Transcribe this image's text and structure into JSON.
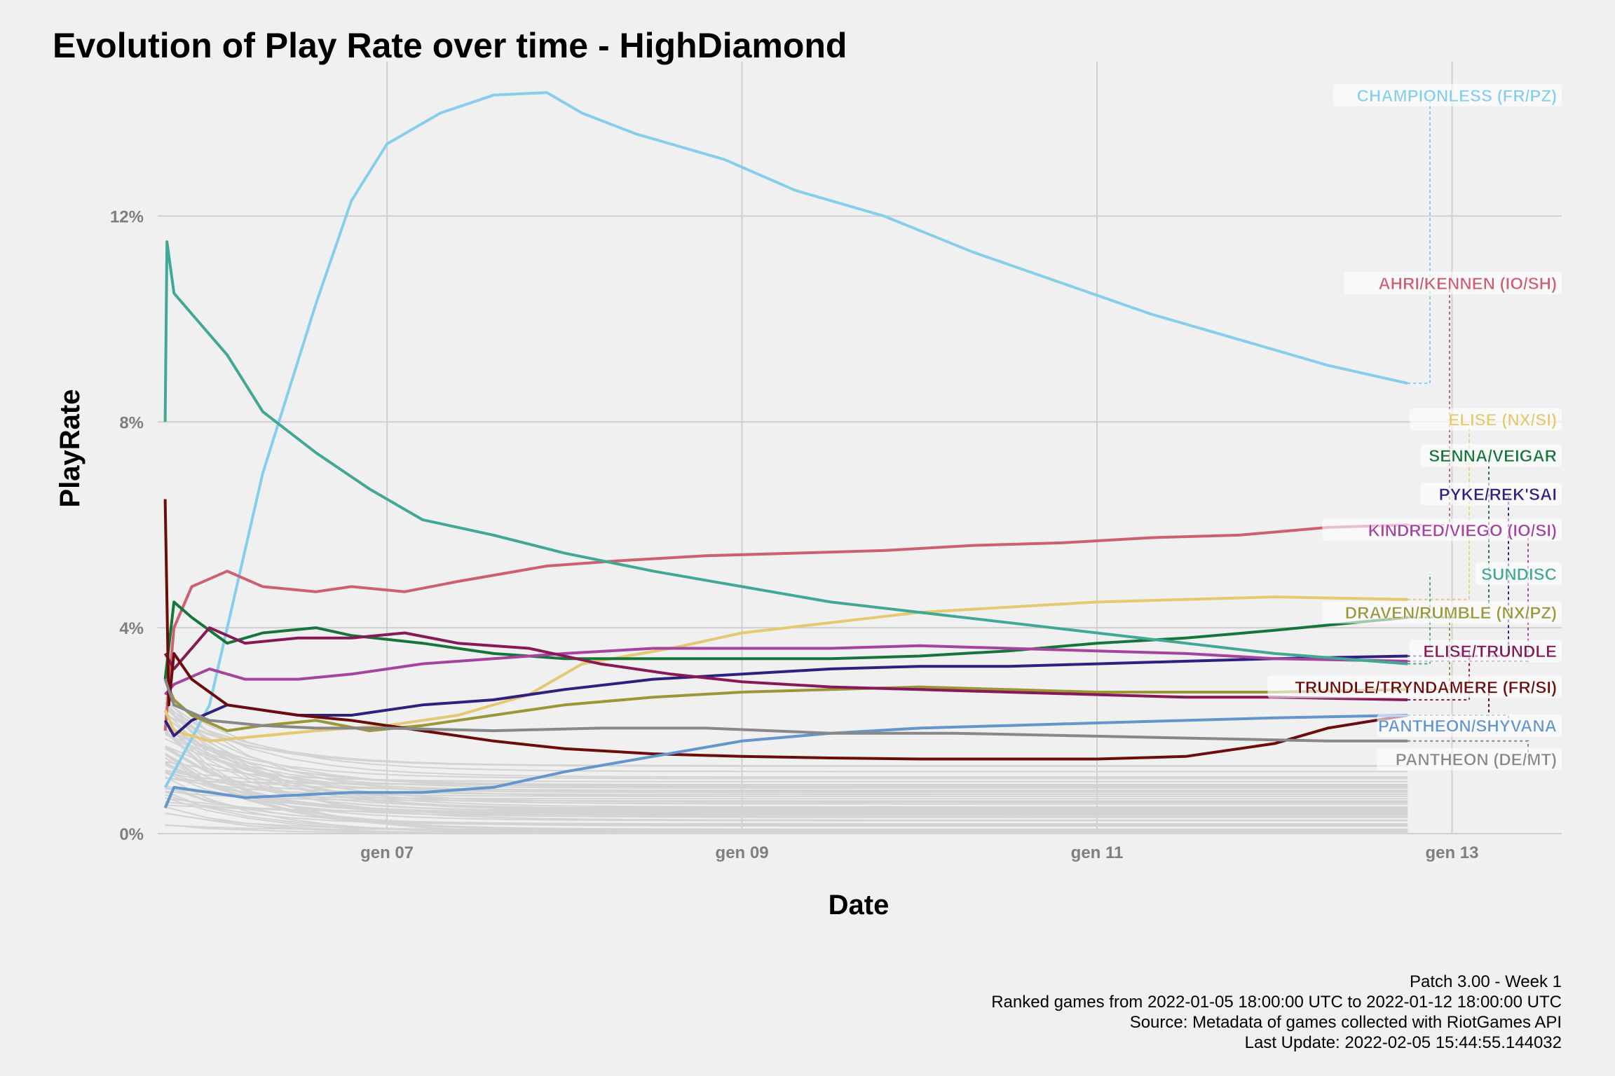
{
  "chart_data": {
    "type": "line",
    "title": "Evolution of Play Rate over time - HighDiamond",
    "xlabel": "Date",
    "ylabel": "PlayRate",
    "x_ticks": [
      "gen 07",
      "gen 09",
      "gen 11",
      "gen 13"
    ],
    "x_tick_dates": [
      "2022-01-07",
      "2022-01-09",
      "2022-01-11",
      "2022-01-13"
    ],
    "xlim": [
      "2022-01-05 17:00",
      "2022-01-13 14:50"
    ],
    "y_ticks": [
      "0%",
      "4%",
      "8%",
      "12%"
    ],
    "y_tick_values": [
      0,
      4,
      8,
      12
    ],
    "ylim": [
      0,
      15
    ],
    "grid": true,
    "legend": "none (direct labels at right)",
    "caption": [
      "Patch 3.00 - Week 1",
      "Ranked games from 2022-01-05 18:00:00 UTC to 2022-01-12 18:00:00 UTC",
      "Source: Metadata of games collected with RiotGames API",
      "Last Update: 2022-02-05 15:44:55.144032"
    ],
    "background_series_color": "#d3d3d3",
    "series": [
      {
        "name": "CHAMPIONLESS (FR/PZ)",
        "color": "#87ceeb",
        "label_y": 14.35,
        "x": [
          "2022-01-05 18:00",
          "2022-01-05 19:12",
          "2022-01-06 00:00",
          "2022-01-06 07:12",
          "2022-01-06 14:24",
          "2022-01-06 19:12",
          "2022-01-07 00:00",
          "2022-01-07 07:12",
          "2022-01-07 14:24",
          "2022-01-07 21:36",
          "2022-01-08 02:24",
          "2022-01-08 09:36",
          "2022-01-08 21:36",
          "2022-01-09 07:12",
          "2022-01-09 19:12",
          "2022-01-10 07:12",
          "2022-01-10 19:12",
          "2022-01-11 07:12",
          "2022-01-11 19:12",
          "2022-01-12 07:12",
          "2022-01-12 18:00"
        ],
        "y": [
          0.9,
          1.2,
          2.5,
          7.0,
          10.3,
          12.3,
          13.4,
          14.0,
          14.35,
          14.4,
          14.0,
          13.6,
          13.1,
          12.5,
          12.0,
          11.3,
          10.7,
          10.1,
          9.6,
          9.1,
          8.75
        ]
      },
      {
        "name": "AHRI/KENNEN (IO/SH)",
        "color": "#cd6070",
        "label_y": 10.7,
        "x": [
          "2022-01-05 18:00",
          "2022-01-05 19:12",
          "2022-01-05 21:36",
          "2022-01-06 02:24",
          "2022-01-06 07:12",
          "2022-01-06 14:24",
          "2022-01-06 19:12",
          "2022-01-07 02:24",
          "2022-01-07 09:36",
          "2022-01-07 21:36",
          "2022-01-08 07:12",
          "2022-01-08 19:12",
          "2022-01-09 07:12",
          "2022-01-09 19:12",
          "2022-01-10 07:12",
          "2022-01-10 19:12",
          "2022-01-11 07:12",
          "2022-01-11 19:12",
          "2022-01-12 07:12",
          "2022-01-12 18:00"
        ],
        "y": [
          2.0,
          4.0,
          4.8,
          5.1,
          4.8,
          4.7,
          4.8,
          4.7,
          4.9,
          5.2,
          5.3,
          5.4,
          5.45,
          5.5,
          5.6,
          5.65,
          5.75,
          5.8,
          5.95,
          6.0
        ]
      },
      {
        "name": "ELISE (NX/SI)",
        "color": "#e4c872",
        "label_y": 8.05,
        "x": [
          "2022-01-05 18:00",
          "2022-01-05 19:12",
          "2022-01-06 00:00",
          "2022-01-06 07:12",
          "2022-01-06 14:24",
          "2022-01-07 00:00",
          "2022-01-07 09:36",
          "2022-01-07 19:12",
          "2022-01-08 02:24",
          "2022-01-08 14:24",
          "2022-01-09 00:00",
          "2022-01-09 12:00",
          "2022-01-10 00:00",
          "2022-01-10 12:00",
          "2022-01-11 00:00",
          "2022-01-11 12:00",
          "2022-01-12 00:00",
          "2022-01-12 18:00"
        ],
        "y": [
          2.4,
          2.0,
          1.8,
          1.9,
          2.0,
          2.1,
          2.3,
          2.7,
          3.3,
          3.6,
          3.9,
          4.1,
          4.3,
          4.4,
          4.5,
          4.55,
          4.6,
          4.55
        ]
      },
      {
        "name": "SENNA/VEIGAR",
        "color": "#17753a",
        "label_y": 7.35,
        "x": [
          "2022-01-05 18:00",
          "2022-01-05 19:12",
          "2022-01-05 21:36",
          "2022-01-06 02:24",
          "2022-01-06 07:12",
          "2022-01-06 14:24",
          "2022-01-06 19:12",
          "2022-01-07 04:48",
          "2022-01-07 14:24",
          "2022-01-08 00:00",
          "2022-01-08 12:00",
          "2022-01-09 00:00",
          "2022-01-09 12:00",
          "2022-01-10 00:00",
          "2022-01-10 12:00",
          "2022-01-11 00:00",
          "2022-01-11 12:00",
          "2022-01-12 00:00",
          "2022-01-12 18:00"
        ],
        "y": [
          3.0,
          4.5,
          4.2,
          3.7,
          3.9,
          4.0,
          3.85,
          3.7,
          3.5,
          3.4,
          3.4,
          3.4,
          3.4,
          3.45,
          3.55,
          3.7,
          3.8,
          3.95,
          4.2
        ]
      },
      {
        "name": "PYKE/REK'SAI",
        "color": "#2e2080",
        "label_y": 6.6,
        "x": [
          "2022-01-05 18:00",
          "2022-01-05 19:12",
          "2022-01-05 21:36",
          "2022-01-06 02:24",
          "2022-01-06 07:12",
          "2022-01-06 12:00",
          "2022-01-06 19:12",
          "2022-01-07 04:48",
          "2022-01-07 14:24",
          "2022-01-08 00:00",
          "2022-01-08 12:00",
          "2022-01-09 00:00",
          "2022-01-09 12:00",
          "2022-01-10 00:00",
          "2022-01-10 12:00",
          "2022-01-11 00:00",
          "2022-01-11 12:00",
          "2022-01-12 00:00",
          "2022-01-12 18:00"
        ],
        "y": [
          2.2,
          1.9,
          2.2,
          2.5,
          2.4,
          2.3,
          2.3,
          2.5,
          2.6,
          2.8,
          3.0,
          3.1,
          3.2,
          3.25,
          3.25,
          3.3,
          3.35,
          3.4,
          3.45
        ]
      },
      {
        "name": "KINDRED/VIEGO (IO/SI)",
        "color": "#a5449e",
        "label_y": 5.9,
        "x": [
          "2022-01-05 18:00",
          "2022-01-05 19:12",
          "2022-01-06 00:00",
          "2022-01-06 04:48",
          "2022-01-06 12:00",
          "2022-01-06 19:12",
          "2022-01-07 04:48",
          "2022-01-07 14:24",
          "2022-01-08 00:00",
          "2022-01-08 12:00",
          "2022-01-09 00:00",
          "2022-01-09 12:00",
          "2022-01-10 00:00",
          "2022-01-10 12:00",
          "2022-01-11 00:00",
          "2022-01-11 12:00",
          "2022-01-12 00:00",
          "2022-01-12 18:00"
        ],
        "y": [
          2.7,
          2.9,
          3.2,
          3.0,
          3.0,
          3.1,
          3.3,
          3.4,
          3.5,
          3.6,
          3.6,
          3.6,
          3.65,
          3.6,
          3.55,
          3.5,
          3.4,
          3.35
        ]
      },
      {
        "name": "SUNDISC",
        "color": "#42a795",
        "label_y": 5.05,
        "x": [
          "2022-01-05 18:00",
          "2022-01-05 18:15",
          "2022-01-05 19:12",
          "2022-01-05 21:36",
          "2022-01-06 02:24",
          "2022-01-06 07:12",
          "2022-01-06 14:24",
          "2022-01-06 21:36",
          "2022-01-07 04:48",
          "2022-01-07 14:24",
          "2022-01-08 00:00",
          "2022-01-08 12:00",
          "2022-01-09 00:00",
          "2022-01-09 12:00",
          "2022-01-10 00:00",
          "2022-01-10 12:00",
          "2022-01-11 00:00",
          "2022-01-11 12:00",
          "2022-01-12 00:00",
          "2022-01-12 18:00"
        ],
        "y": [
          8.0,
          11.5,
          10.5,
          10.1,
          9.3,
          8.2,
          7.4,
          6.7,
          6.1,
          5.8,
          5.45,
          5.1,
          4.8,
          4.5,
          4.3,
          4.1,
          3.9,
          3.7,
          3.5,
          3.3
        ]
      },
      {
        "name": "DRAVEN/RUMBLE (NX/PZ)",
        "color": "#9b9739",
        "label_y": 4.3,
        "x": [
          "2022-01-05 18:00",
          "2022-01-05 19:12",
          "2022-01-05 21:36",
          "2022-01-06 02:24",
          "2022-01-06 07:12",
          "2022-01-06 14:24",
          "2022-01-06 21:36",
          "2022-01-07 04:48",
          "2022-01-07 14:24",
          "2022-01-08 00:00",
          "2022-01-08 12:00",
          "2022-01-09 00:00",
          "2022-01-09 12:00",
          "2022-01-10 00:00",
          "2022-01-10 12:00",
          "2022-01-11 00:00",
          "2022-01-11 12:00",
          "2022-01-12 00:00",
          "2022-01-12 18:00"
        ],
        "y": [
          3.0,
          2.6,
          2.3,
          2.0,
          2.1,
          2.2,
          2.0,
          2.1,
          2.3,
          2.5,
          2.65,
          2.75,
          2.8,
          2.85,
          2.8,
          2.75,
          2.75,
          2.75,
          2.8
        ]
      },
      {
        "name": "ELISE/TRUNDLE",
        "color": "#851a56",
        "label_y": 3.55,
        "x": [
          "2022-01-05 18:00",
          "2022-01-05 19:12",
          "2022-01-06 00:00",
          "2022-01-06 04:48",
          "2022-01-06 12:00",
          "2022-01-06 19:12",
          "2022-01-07 02:24",
          "2022-01-07 09:36",
          "2022-01-07 19:12",
          "2022-01-08 04:48",
          "2022-01-08 14:24",
          "2022-01-09 00:00",
          "2022-01-09 12:00",
          "2022-01-10 00:00",
          "2022-01-10 12:00",
          "2022-01-11 00:00",
          "2022-01-11 12:00",
          "2022-01-12 00:00",
          "2022-01-12 18:00"
        ],
        "y": [
          3.5,
          3.2,
          4.0,
          3.7,
          3.8,
          3.8,
          3.9,
          3.7,
          3.6,
          3.3,
          3.1,
          2.95,
          2.85,
          2.8,
          2.75,
          2.7,
          2.65,
          2.65,
          2.6
        ]
      },
      {
        "name": "TRUNDLE/TRYNDAMERE (FR/SI)",
        "color": "#6b0d0d",
        "label_y": 2.85,
        "x": [
          "2022-01-05 18:00",
          "2022-01-05 18:30",
          "2022-01-05 19:12",
          "2022-01-05 21:36",
          "2022-01-06 02:24",
          "2022-01-06 07:12",
          "2022-01-06 12:00",
          "2022-01-06 19:12",
          "2022-01-07 04:48",
          "2022-01-07 14:24",
          "2022-01-08 00:00",
          "2022-01-08 12:00",
          "2022-01-09 00:00",
          "2022-01-09 12:00",
          "2022-01-10 00:00",
          "2022-01-10 12:00",
          "2022-01-11 00:00",
          "2022-01-11 12:00",
          "2022-01-12 00:00",
          "2022-01-12 07:12",
          "2022-01-12 18:00"
        ],
        "y": [
          6.5,
          2.5,
          3.5,
          3.0,
          2.5,
          2.4,
          2.3,
          2.2,
          2.0,
          1.8,
          1.65,
          1.55,
          1.5,
          1.47,
          1.45,
          1.45,
          1.45,
          1.5,
          1.75,
          2.05,
          2.3
        ]
      },
      {
        "name": "PANTHEON/SHYVANA",
        "color": "#6495cd",
        "label_y": 2.1,
        "x": [
          "2022-01-05 18:00",
          "2022-01-05 19:12",
          "2022-01-06 00:00",
          "2022-01-06 04:48",
          "2022-01-06 12:00",
          "2022-01-06 19:12",
          "2022-01-07 04:48",
          "2022-01-07 14:24",
          "2022-01-08 00:00",
          "2022-01-08 12:00",
          "2022-01-09 00:00",
          "2022-01-09 12:00",
          "2022-01-10 00:00",
          "2022-01-10 12:00",
          "2022-01-11 00:00",
          "2022-01-11 12:00",
          "2022-01-12 00:00",
          "2022-01-12 18:00"
        ],
        "y": [
          0.5,
          0.9,
          0.8,
          0.7,
          0.75,
          0.8,
          0.8,
          0.9,
          1.2,
          1.5,
          1.8,
          1.95,
          2.05,
          2.1,
          2.15,
          2.2,
          2.25,
          2.3
        ]
      },
      {
        "name": "PANTHEON (DE/MT)",
        "color": "#888888",
        "label_y": 1.45,
        "x": [
          "2022-01-05 18:00",
          "2022-01-05 19:12",
          "2022-01-06 00:00",
          "2022-01-06 07:12",
          "2022-01-06 14:24",
          "2022-01-07 00:00",
          "2022-01-07 14:24",
          "2022-01-08 04:48",
          "2022-01-08 19:12",
          "2022-01-09 12:00",
          "2022-01-10 04:48",
          "2022-01-10 21:36",
          "2022-01-11 14:24",
          "2022-01-12 07:12",
          "2022-01-12 18:00"
        ],
        "y": [
          3.0,
          2.5,
          2.2,
          2.1,
          2.05,
          2.05,
          2.0,
          2.05,
          2.05,
          1.95,
          1.95,
          1.9,
          1.85,
          1.8,
          1.8
        ]
      }
    ]
  }
}
